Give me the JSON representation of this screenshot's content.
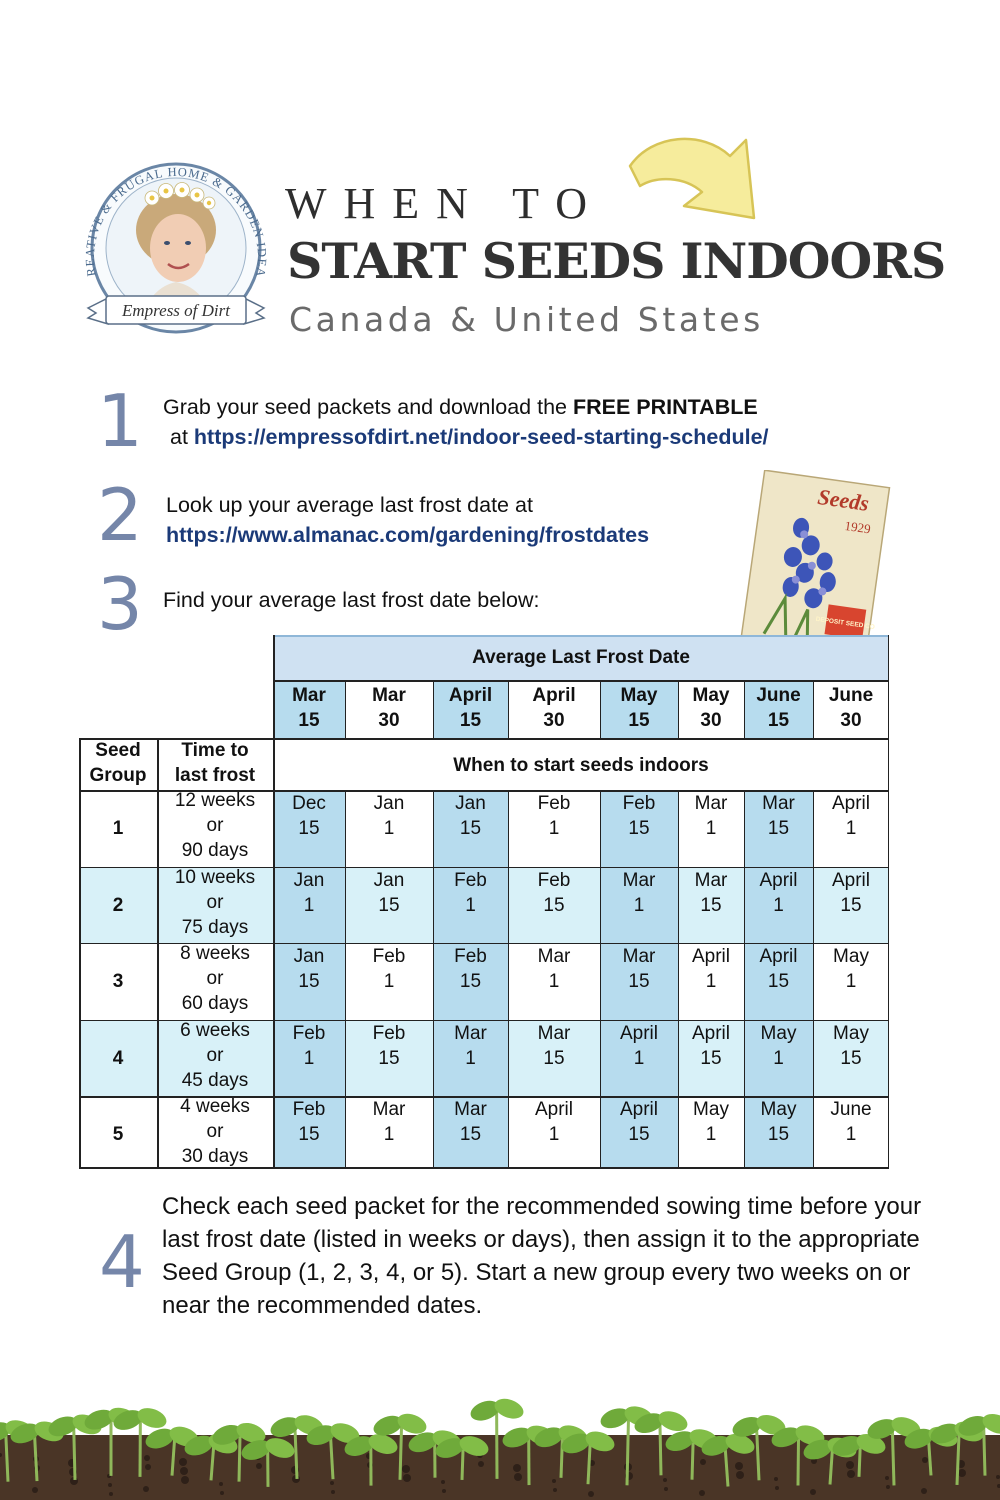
{
  "logo": {
    "arc_text": "CREATIVE & FRUGAL HOME & GARDEN IDEAS",
    "banner_text": "Empress of Dirt"
  },
  "header": {
    "line1": "WHEN TO",
    "line2": "START SEEDS INDOORS",
    "line3": "Canada & United States"
  },
  "steps": [
    {
      "number": "1",
      "text_before": "Grab your seed packets and download the ",
      "text_bold": "FREE PRINTABLE",
      "line2_prefix": "at ",
      "link": "https://empressofdirt.net/indoor-seed-starting-schedule/"
    },
    {
      "number": "2",
      "text": "Look up your average last frost date at",
      "link": "https://www.almanac.com/gardening/frostdates"
    },
    {
      "number": "3",
      "text": "Find your average last frost date below:"
    },
    {
      "number": "4",
      "text": "Check each seed packet for the recommended sowing time before your last frost date (listed in weeks or days), then assign it to the appropriate Seed Group (1, 2, 3, 4, or 5). Start a new group every two weeks on or near the recommended dates."
    }
  ],
  "seed_packet": {
    "top_text": "Seeds",
    "year": "1929",
    "brand": "DEPOSIT SEED CO"
  },
  "table": {
    "frost_header": "Average Last Frost Date",
    "frost_dates": [
      [
        "Mar",
        "15"
      ],
      [
        "Mar",
        "30"
      ],
      [
        "April",
        "15"
      ],
      [
        "April",
        "30"
      ],
      [
        "May",
        "15"
      ],
      [
        "May",
        "30"
      ],
      [
        "June",
        "15"
      ],
      [
        "June",
        "30"
      ]
    ],
    "col_seed_group": [
      "Seed",
      "Group"
    ],
    "col_time": [
      "Time to",
      "last frost"
    ],
    "start_header": "When to start seeds indoors",
    "rows": [
      {
        "group": "1",
        "time": [
          "12 weeks",
          "or",
          "90 days"
        ],
        "dates": [
          [
            "Dec",
            "15"
          ],
          [
            "Jan",
            "1"
          ],
          [
            "Jan",
            "15"
          ],
          [
            "Feb",
            "1"
          ],
          [
            "Feb",
            "15"
          ],
          [
            "Mar",
            "1"
          ],
          [
            "Mar",
            "15"
          ],
          [
            "April",
            "1"
          ]
        ]
      },
      {
        "group": "2",
        "time": [
          "10 weeks",
          "or",
          "75 days"
        ],
        "dates": [
          [
            "Jan",
            "1"
          ],
          [
            "Jan",
            "15"
          ],
          [
            "Feb",
            "1"
          ],
          [
            "Feb",
            "15"
          ],
          [
            "Mar",
            "1"
          ],
          [
            "Mar",
            "15"
          ],
          [
            "April",
            "1"
          ],
          [
            "April",
            "15"
          ]
        ]
      },
      {
        "group": "3",
        "time": [
          "8 weeks",
          "or",
          "60 days"
        ],
        "dates": [
          [
            "Jan",
            "15"
          ],
          [
            "Feb",
            "1"
          ],
          [
            "Feb",
            "15"
          ],
          [
            "Mar",
            "1"
          ],
          [
            "Mar",
            "15"
          ],
          [
            "April",
            "1"
          ],
          [
            "April",
            "15"
          ],
          [
            "May",
            "1"
          ]
        ]
      },
      {
        "group": "4",
        "time": [
          "6 weeks",
          "or",
          "45 days"
        ],
        "dates": [
          [
            "Feb",
            "1"
          ],
          [
            "Feb",
            "15"
          ],
          [
            "Mar",
            "1"
          ],
          [
            "Mar",
            "15"
          ],
          [
            "April",
            "1"
          ],
          [
            "April",
            "15"
          ],
          [
            "May",
            "1"
          ],
          [
            "May",
            "15"
          ]
        ]
      },
      {
        "group": "5",
        "time": [
          "4 weeks",
          "or",
          "30 days"
        ],
        "dates": [
          [
            "Feb",
            "15"
          ],
          [
            "Mar",
            "1"
          ],
          [
            "Mar",
            "15"
          ],
          [
            "April",
            "1"
          ],
          [
            "April",
            "15"
          ],
          [
            "May",
            "1"
          ],
          [
            "May",
            "15"
          ],
          [
            "June",
            "1"
          ]
        ]
      }
    ]
  },
  "colors": {
    "step_number": "#7586a9",
    "link": "#1b3a78",
    "header_band": "#cfe1f2",
    "highlight_column": "#b7dcee",
    "highlight_row": "#d8f1f8",
    "arrow_fill": "#f6ec9c",
    "arrow_stroke": "#d7c456"
  }
}
